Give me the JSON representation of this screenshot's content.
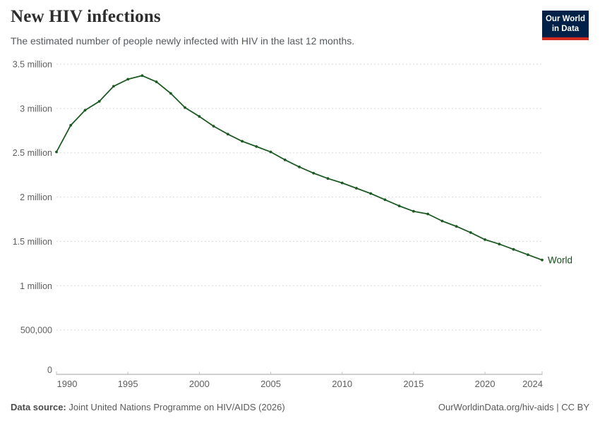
{
  "header": {
    "title": "New HIV infections",
    "subtitle": "The estimated number of people newly infected with HIV in the last 12 months.",
    "logo": {
      "line1": "Our World",
      "line2": "in Data"
    }
  },
  "footer": {
    "source_label": "Data source:",
    "source_text": " Joint United Nations Programme on HIV/AIDS (2026)",
    "attribution": "OurWorldinData.org/hiv-aids | CC BY"
  },
  "colors": {
    "line": "#1d5a23",
    "end_label": "#16501d",
    "gridline": "#dadada",
    "axis": "#a0a0a0",
    "tick": "#bdbdbd",
    "tick_label": "#5f5f5f",
    "logo_bg": "#002147",
    "logo_stripe": "#d12b1f"
  },
  "chart_data": {
    "type": "line",
    "title": "New HIV infections",
    "xlabel": "",
    "ylabel": "",
    "xlim": [
      1990,
      2024
    ],
    "ylim": [
      0,
      3500000
    ],
    "grid": "horizontal-dashed",
    "legend_position": "end-of-line",
    "x_ticks": [
      1990,
      1995,
      2000,
      2005,
      2010,
      2015,
      2020,
      2024
    ],
    "y_ticks": [
      {
        "value": 3500000,
        "label": "3.5 million"
      },
      {
        "value": 3000000,
        "label": "3 million"
      },
      {
        "value": 2500000,
        "label": "2.5 million"
      },
      {
        "value": 2000000,
        "label": "2 million"
      },
      {
        "value": 1500000,
        "label": "1.5 million"
      },
      {
        "value": 1000000,
        "label": "1 million"
      },
      {
        "value": 500000,
        "label": "500,000"
      },
      {
        "value": 0,
        "label": "0"
      }
    ],
    "series": [
      {
        "name": "World",
        "x": [
          1990,
          1991,
          1992,
          1993,
          1994,
          1995,
          1996,
          1997,
          1998,
          1999,
          2000,
          2001,
          2002,
          2003,
          2004,
          2005,
          2006,
          2007,
          2008,
          2009,
          2010,
          2011,
          2012,
          2013,
          2014,
          2015,
          2016,
          2017,
          2018,
          2019,
          2020,
          2021,
          2022,
          2023,
          2024
        ],
        "values": [
          2510000,
          2810000,
          2980000,
          3080000,
          3250000,
          3330000,
          3370000,
          3300000,
          3170000,
          3010000,
          2910000,
          2800000,
          2710000,
          2630000,
          2570000,
          2510000,
          2420000,
          2340000,
          2270000,
          2210000,
          2160000,
          2100000,
          2040000,
          1970000,
          1900000,
          1840000,
          1810000,
          1730000,
          1670000,
          1600000,
          1520000,
          1470000,
          1410000,
          1350000,
          1290000
        ]
      }
    ]
  }
}
